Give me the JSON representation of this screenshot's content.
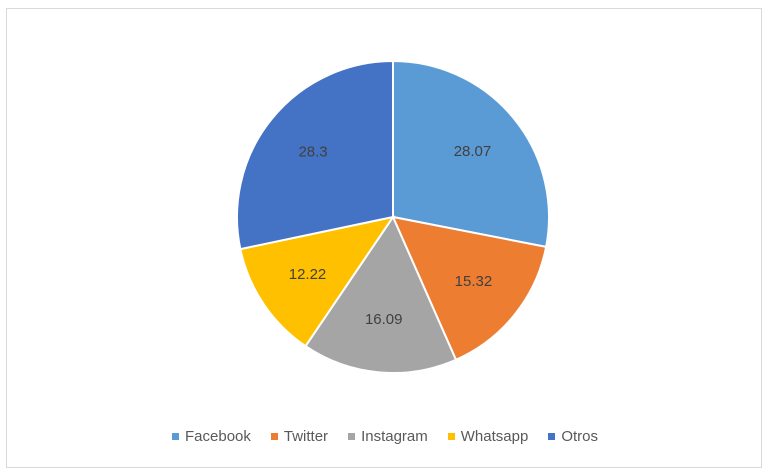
{
  "chart_data": {
    "type": "pie",
    "title": "",
    "start_angle_deg": 0,
    "direction": "clockwise",
    "slices": [
      {
        "label": "Facebook",
        "value": 28.07,
        "value_label": "28.07",
        "color": "#5b9bd5"
      },
      {
        "label": "Twitter",
        "value": 15.32,
        "value_label": "15.32",
        "color": "#ed7d31"
      },
      {
        "label": "Instagram",
        "value": 16.09,
        "value_label": "16.09",
        "color": "#a5a5a5"
      },
      {
        "label": "Whatsapp",
        "value": 12.22,
        "value_label": "12.22",
        "color": "#ffc000"
      },
      {
        "label": "Otros",
        "value": 28.3,
        "value_label": "28.3",
        "color": "#4472c4"
      }
    ],
    "legend_position": "bottom"
  }
}
